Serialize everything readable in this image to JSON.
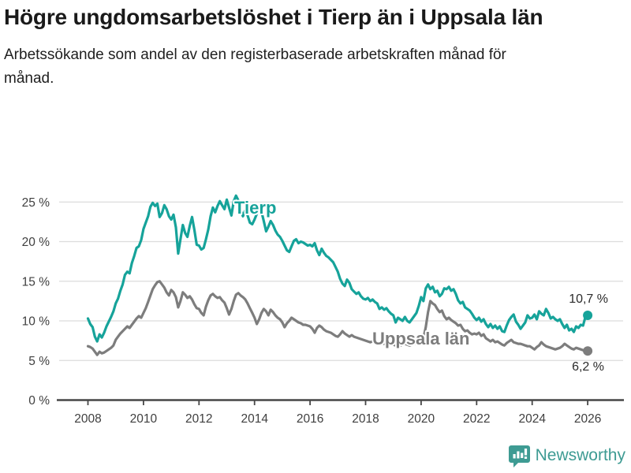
{
  "header": {
    "title": "Högre ungdomsarbetslöshet i Tierp än i Uppsala län",
    "subtitle": "Arbetssökande som andel av den registerbaserade arbetskraften månad för månad."
  },
  "chart_data": {
    "type": "line",
    "title": "Högre ungdomsarbetslöshet i Tierp än i Uppsala län",
    "x_start": "2008-01",
    "x_end": "2026-01",
    "x_interval": "monthly",
    "ylim": [
      0,
      27
    ],
    "grid": "horizontal",
    "legend_position": "inline-labels-on-lines",
    "y_ticks": [
      {
        "label": "0 %",
        "value": 0
      },
      {
        "label": "5 %",
        "value": 5
      },
      {
        "label": "10 %",
        "value": 10
      },
      {
        "label": "15 %",
        "value": 15
      },
      {
        "label": "20 %",
        "value": 20
      },
      {
        "label": "25 %",
        "value": 25
      }
    ],
    "x_ticks": [
      {
        "label": "2008",
        "year": 2008
      },
      {
        "label": "2010",
        "year": 2010
      },
      {
        "label": "2012",
        "year": 2012
      },
      {
        "label": "2014",
        "year": 2014
      },
      {
        "label": "2016",
        "year": 2016
      },
      {
        "label": "2018",
        "year": 2018
      },
      {
        "label": "2020",
        "year": 2020
      },
      {
        "label": "2022",
        "year": 2022
      },
      {
        "label": "2024",
        "year": 2024
      },
      {
        "label": "2026",
        "year": 2026
      }
    ],
    "series": [
      {
        "name": "Tierp",
        "color": "#16a39a",
        "end_label": "10,7 %",
        "end_value": 10.7,
        "values": [
          10.3,
          9.6,
          9.2,
          8.0,
          7.4,
          8.3,
          7.9,
          8.5,
          9.3,
          9.9,
          10.5,
          11.2,
          12.2,
          12.8,
          13.8,
          14.6,
          15.8,
          16.2,
          16.0,
          17.3,
          18.2,
          19.2,
          19.4,
          20.2,
          21.6,
          22.4,
          23.2,
          24.4,
          24.9,
          24.5,
          24.8,
          23.1,
          23.6,
          24.6,
          24.1,
          23.2,
          22.8,
          23.4,
          21.8,
          18.5,
          20.3,
          22.1,
          21.1,
          20.6,
          22.0,
          23.1,
          21.5,
          19.6,
          19.5,
          19.0,
          19.2,
          20.3,
          21.5,
          23.2,
          24.3,
          23.7,
          24.5,
          25.1,
          24.6,
          24.1,
          25.3,
          24.3,
          23.3,
          25.1,
          25.8,
          25.2,
          24.0,
          23.2,
          24.0,
          23.3,
          22.4,
          22.2,
          22.8,
          23.5,
          24.2,
          23.8,
          22.6,
          21.3,
          21.9,
          22.6,
          22.1,
          21.4,
          20.9,
          20.6,
          20.1,
          19.5,
          18.9,
          18.7,
          19.4,
          20.1,
          20.3,
          19.8,
          20.0,
          19.9,
          19.7,
          19.5,
          19.6,
          19.4,
          19.8,
          18.9,
          18.3,
          19.1,
          18.6,
          18.2,
          18.0,
          17.7,
          17.4,
          16.8,
          16.2,
          15.3,
          14.7,
          14.4,
          15.2,
          14.8,
          14.0,
          13.7,
          13.4,
          13.6,
          13.1,
          12.8,
          12.7,
          12.9,
          12.5,
          12.7,
          12.4,
          12.2,
          11.5,
          11.7,
          11.4,
          11.6,
          11.2,
          10.9,
          10.7,
          9.8,
          10.4,
          10.2,
          10.0,
          10.5,
          10.0,
          9.8,
          10.2,
          10.6,
          11.0,
          11.9,
          13.0,
          12.5,
          14.1,
          14.6,
          14.0,
          14.3,
          13.6,
          13.8,
          13.1,
          13.4,
          14.1,
          14.0,
          14.3,
          13.8,
          14.0,
          13.4,
          12.6,
          12.2,
          12.4,
          11.7,
          11.5,
          11.3,
          10.9,
          10.4,
          10.1,
          10.4,
          9.9,
          10.2,
          9.6,
          9.2,
          9.6,
          9.1,
          9.4,
          9.0,
          9.3,
          8.7,
          8.6,
          9.4,
          10.1,
          10.5,
          10.8,
          9.9,
          9.5,
          9.0,
          9.4,
          9.8,
          10.7,
          10.3,
          10.4,
          10.8,
          10.2,
          11.2,
          10.9,
          10.7,
          11.5,
          11.0,
          10.3,
          10.5,
          10.2,
          10.0,
          10.2,
          9.6,
          9.1,
          9.5,
          8.8,
          9.0,
          8.6,
          9.3,
          9.1,
          9.5,
          9.4,
          10.5,
          10.7
        ]
      },
      {
        "name": "Uppsala län",
        "color": "#7d7d7d",
        "end_label": "6,2 %",
        "end_value": 6.2,
        "values": [
          6.8,
          6.7,
          6.5,
          6.1,
          5.7,
          6.1,
          5.9,
          6.0,
          6.2,
          6.4,
          6.6,
          6.9,
          7.6,
          8.0,
          8.4,
          8.7,
          9.0,
          9.3,
          9.1,
          9.5,
          9.9,
          10.3,
          10.6,
          10.4,
          11.0,
          11.6,
          12.4,
          13.2,
          14.0,
          14.5,
          14.9,
          15.0,
          14.6,
          14.2,
          13.6,
          13.2,
          13.9,
          13.6,
          13.0,
          11.7,
          12.5,
          13.6,
          13.3,
          12.9,
          13.1,
          12.7,
          12.1,
          11.6,
          11.5,
          11.0,
          10.7,
          11.8,
          12.6,
          13.2,
          13.4,
          13.1,
          12.9,
          13.0,
          12.6,
          12.3,
          11.6,
          10.8,
          11.5,
          12.5,
          13.3,
          13.5,
          13.2,
          13.0,
          12.7,
          12.2,
          11.6,
          11.0,
          10.4,
          9.6,
          10.2,
          11.0,
          11.5,
          11.2,
          10.7,
          11.4,
          11.1,
          10.7,
          10.4,
          10.2,
          9.8,
          9.2,
          9.7,
          10.0,
          10.4,
          10.2,
          10.0,
          9.8,
          9.7,
          9.5,
          9.5,
          9.4,
          9.3,
          9.0,
          8.5,
          9.1,
          9.4,
          9.2,
          8.9,
          8.7,
          8.6,
          8.5,
          8.3,
          8.1,
          8.0,
          8.3,
          8.7,
          8.4,
          8.2,
          8.0,
          8.2,
          8.0,
          7.9,
          7.8,
          7.7,
          7.6,
          7.5,
          7.4,
          7.3,
          7.4,
          7.2,
          7.3,
          7.1,
          7.2,
          7.1,
          7.0,
          7.0,
          7.1,
          7.0,
          6.9,
          7.0,
          6.9,
          7.0,
          7.1,
          7.0,
          6.9,
          7.0,
          7.1,
          7.2,
          7.3,
          7.5,
          7.8,
          9.2,
          11.1,
          12.5,
          12.2,
          12.0,
          11.5,
          11.1,
          11.3,
          10.6,
          10.2,
          10.4,
          10.1,
          9.9,
          9.7,
          9.4,
          9.5,
          9.0,
          8.7,
          8.8,
          8.5,
          8.3,
          8.4,
          8.3,
          8.5,
          8.1,
          8.3,
          7.8,
          7.6,
          7.4,
          7.6,
          7.3,
          7.4,
          7.2,
          7.0,
          6.9,
          7.2,
          7.4,
          7.6,
          7.3,
          7.2,
          7.1,
          7.1,
          7.0,
          6.9,
          6.8,
          6.8,
          6.6,
          6.4,
          6.7,
          6.9,
          7.3,
          7.0,
          6.8,
          6.7,
          6.6,
          6.5,
          6.4,
          6.5,
          6.6,
          6.8,
          7.1,
          6.9,
          6.7,
          6.5,
          6.4,
          6.6,
          6.5,
          6.4,
          6.3,
          6.2,
          6.2
        ]
      }
    ]
  },
  "footer": {
    "brand": "Newsworthy",
    "brand_color": "#3e9b93",
    "logo_icon": "bar-chart-speech-bubble-icon"
  }
}
